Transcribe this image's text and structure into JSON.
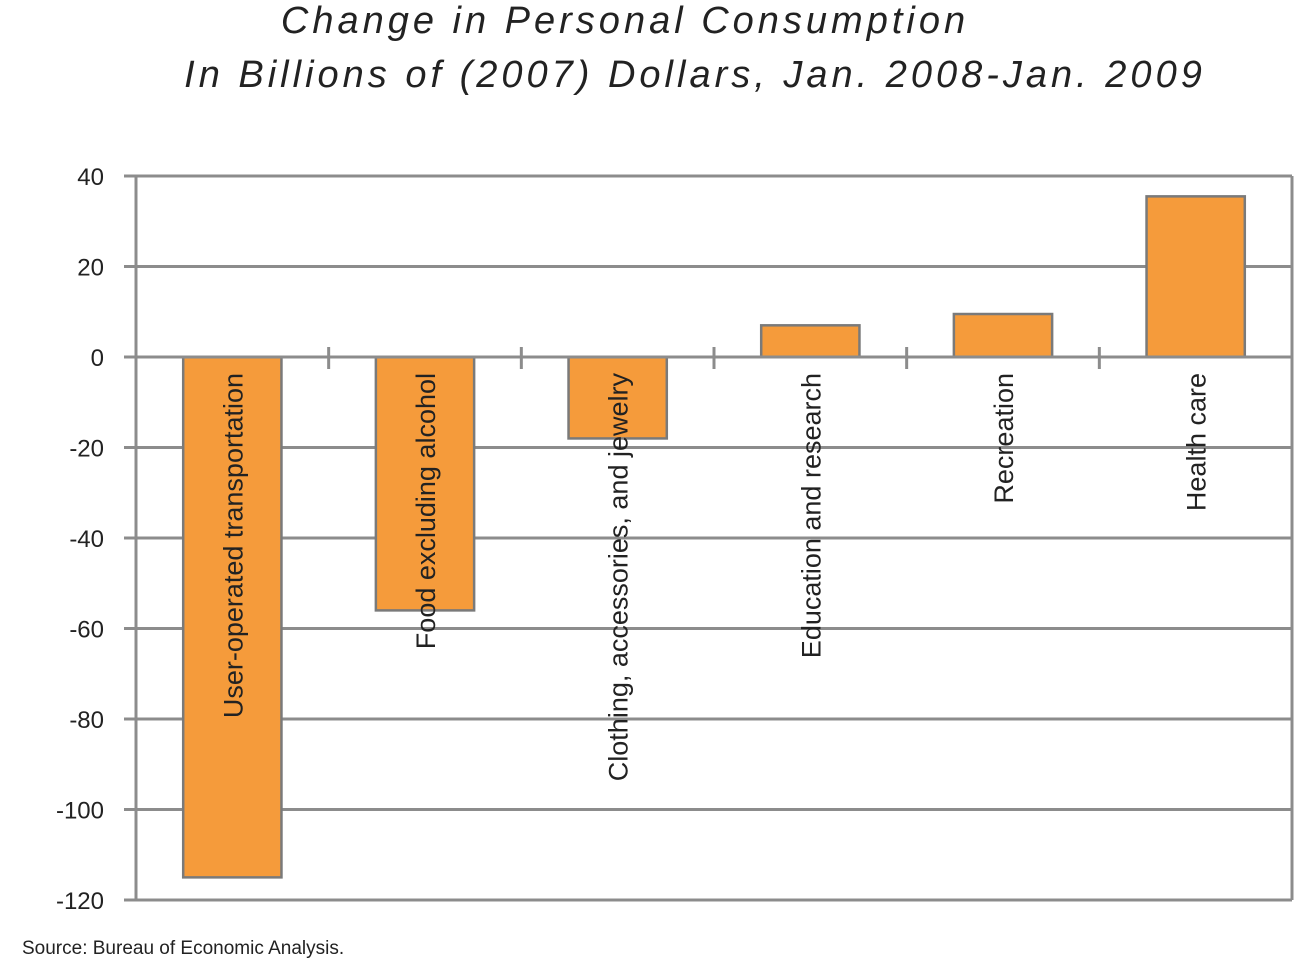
{
  "title_line1": "Change in Personal Consumption",
  "title_line2": "In Billions of (2007) Dollars, Jan. 2008-Jan. 2009",
  "source": "Source: Bureau of Economic Analysis.",
  "colors": {
    "bar": "#f59b3b",
    "bar_border": "#7a7a7a",
    "grid": "#8c8c8c",
    "text": "#222222"
  },
  "chart_data": {
    "type": "bar",
    "title": "Change in Personal Consumption In Billions of (2007) Dollars, Jan. 2008-Jan. 2009",
    "categories": [
      "User-operated transportation",
      "Food excluding alcohol",
      "Clothing, accessories, and jewelry",
      "Education and research",
      "Recreation",
      "Health care"
    ],
    "values": [
      -115,
      -56,
      -18,
      7,
      9.5,
      35.5
    ],
    "yticks": [
      "40",
      "20",
      "0",
      "-20",
      "-40",
      "-60",
      "-80",
      "-100",
      "-120"
    ],
    "ylim": [
      -120,
      40
    ],
    "grid": true,
    "xlabel": "",
    "ylabel": ""
  }
}
